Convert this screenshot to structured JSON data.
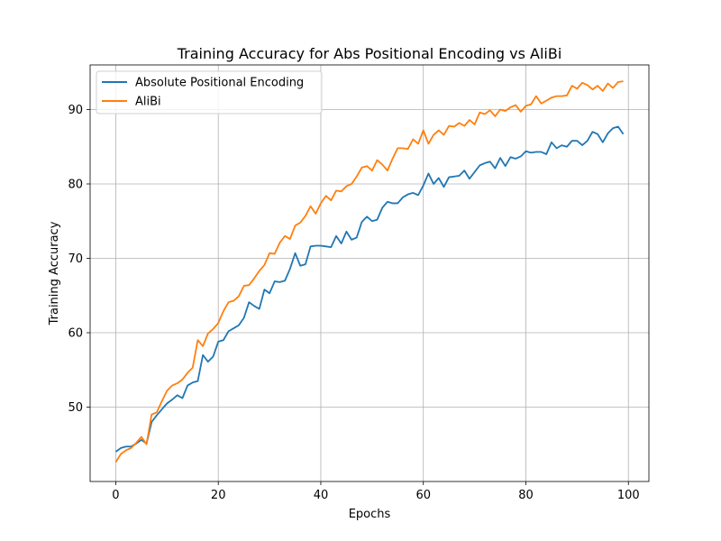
{
  "chart_data": {
    "type": "line",
    "title": "Training Accuracy for Abs Positional Encoding vs AliBi",
    "xlabel": "Epochs",
    "ylabel": "Training Accuracy",
    "xlim": [
      -5,
      104
    ],
    "ylim": [
      40,
      96
    ],
    "xticks": [
      0,
      20,
      40,
      60,
      80,
      100
    ],
    "yticks": [
      50,
      60,
      70,
      80,
      90
    ],
    "grid": true,
    "legend_position": "top-left",
    "series": [
      {
        "name": "Absolute Positional Encoding",
        "color": "#1f77b4",
        "x": [
          0,
          1,
          2,
          3,
          4,
          5,
          6,
          7,
          8,
          9,
          10,
          11,
          12,
          13,
          14,
          15,
          16,
          17,
          18,
          19,
          20,
          21,
          22,
          23,
          24,
          25,
          26,
          27,
          28,
          29,
          30,
          31,
          32,
          33,
          34,
          35,
          36,
          37,
          38,
          39,
          40,
          41,
          42,
          43,
          44,
          45,
          46,
          47,
          48,
          49,
          50,
          51,
          52,
          53,
          54,
          55,
          56,
          57,
          58,
          59,
          60,
          61,
          62,
          63,
          64,
          65,
          66,
          67,
          68,
          69,
          70,
          71,
          72,
          73,
          74,
          75,
          76,
          77,
          78,
          79,
          80,
          81,
          82,
          83,
          84,
          85,
          86,
          87,
          88,
          89,
          90,
          91,
          92,
          93,
          94,
          95,
          96,
          97,
          98,
          99
        ],
        "values": [
          44.0,
          44.5,
          44.7,
          44.7,
          45.1,
          45.6,
          45.1,
          48.0,
          48.9,
          49.7,
          50.5,
          51.0,
          51.6,
          51.2,
          52.9,
          53.3,
          53.5,
          57.0,
          56.1,
          56.8,
          58.8,
          59.0,
          60.2,
          60.6,
          61.0,
          62.0,
          64.1,
          63.6,
          63.2,
          65.8,
          65.3,
          66.9,
          66.8,
          67.0,
          68.6,
          70.7,
          69.0,
          69.2,
          71.6,
          71.7,
          71.7,
          71.6,
          71.5,
          73.0,
          72.0,
          73.6,
          72.5,
          72.8,
          74.9,
          75.6,
          75.0,
          75.2,
          76.8,
          77.6,
          77.4,
          77.4,
          78.2,
          78.6,
          78.8,
          78.5,
          79.8,
          81.4,
          80.0,
          80.8,
          79.6,
          80.9,
          81.0,
          81.1,
          81.8,
          80.7,
          81.6,
          82.5,
          82.8,
          83.0,
          82.1,
          83.5,
          82.4,
          83.6,
          83.4,
          83.7,
          84.4,
          84.2,
          84.3,
          84.3,
          84.0,
          85.6,
          84.8,
          85.2,
          85.0,
          85.8,
          85.8,
          85.2,
          85.8,
          87.0,
          86.7,
          85.6,
          86.8,
          87.5,
          87.7,
          86.7
        ]
      },
      {
        "name": "AliBi",
        "color": "#ff7f0e",
        "x": [
          0,
          1,
          2,
          3,
          4,
          5,
          6,
          7,
          8,
          9,
          10,
          11,
          12,
          13,
          14,
          15,
          16,
          17,
          18,
          19,
          20,
          21,
          22,
          23,
          24,
          25,
          26,
          27,
          28,
          29,
          30,
          31,
          32,
          33,
          34,
          35,
          36,
          37,
          38,
          39,
          40,
          41,
          42,
          43,
          44,
          45,
          46,
          47,
          48,
          49,
          50,
          51,
          52,
          53,
          54,
          55,
          56,
          57,
          58,
          59,
          60,
          61,
          62,
          63,
          64,
          65,
          66,
          67,
          68,
          69,
          70,
          71,
          72,
          73,
          74,
          75,
          76,
          77,
          78,
          79,
          80,
          81,
          82,
          83,
          84,
          85,
          86,
          87,
          88,
          89,
          90,
          91,
          92,
          93,
          94,
          95,
          96,
          97,
          98,
          99
        ],
        "values": [
          42.6,
          43.7,
          44.2,
          44.5,
          45.2,
          46.0,
          45.0,
          49.0,
          49.3,
          50.8,
          52.2,
          52.9,
          53.2,
          53.7,
          54.6,
          55.3,
          59.0,
          58.2,
          59.9,
          60.5,
          61.3,
          62.9,
          64.1,
          64.3,
          64.9,
          66.3,
          66.4,
          67.3,
          68.3,
          69.1,
          70.7,
          70.6,
          72.1,
          73.0,
          72.6,
          74.4,
          74.8,
          75.7,
          77.0,
          76.0,
          77.4,
          78.4,
          77.8,
          79.1,
          79.0,
          79.7,
          80.0,
          81.0,
          82.2,
          82.4,
          81.8,
          83.2,
          82.6,
          81.8,
          83.4,
          84.8,
          84.8,
          84.7,
          86.0,
          85.4,
          87.2,
          85.4,
          86.6,
          87.2,
          86.6,
          87.8,
          87.7,
          88.2,
          87.8,
          88.6,
          88.0,
          89.6,
          89.4,
          89.9,
          89.1,
          90.0,
          89.8,
          90.3,
          90.6,
          89.7,
          90.5,
          90.7,
          91.8,
          90.8,
          91.2,
          91.6,
          91.8,
          91.8,
          91.9,
          93.2,
          92.8,
          93.6,
          93.3,
          92.7,
          93.2,
          92.5,
          93.5,
          92.9,
          93.7,
          93.8
        ]
      }
    ]
  }
}
